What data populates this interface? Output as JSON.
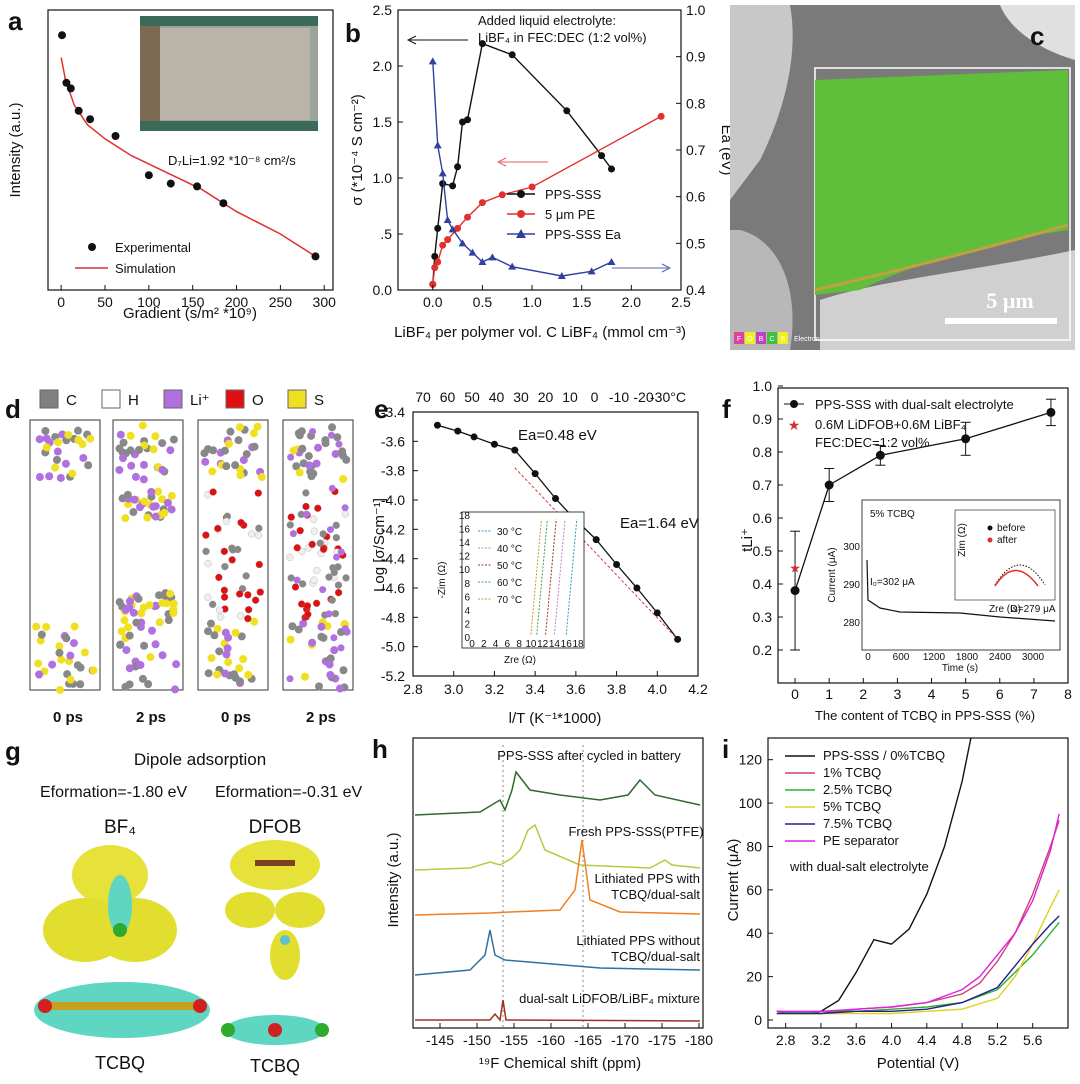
{
  "panels": {
    "a": {
      "letter": "a",
      "xlabel": "Gradient (s/m² *10⁹)",
      "ylabel": "Intensity (a.u.)",
      "diffusion": "D₇Li=1.92 *10⁻⁸ cm²/s",
      "legend": [
        "Experimental",
        "Simulation"
      ],
      "xticks": [
        "0",
        "50",
        "100",
        "150",
        "200",
        "250",
        "300"
      ]
    },
    "b": {
      "letter": "b",
      "xlabel": "LiBF₄ per polymer vol. C LiBF₄ (mmol cm⁻³)",
      "ylabel_left": "σ (*10⁻⁴ S cm⁻²)",
      "ylabel_right": "Ea (eV)",
      "note1": "Added liquid electrolyte:",
      "note2": "LiBF₄ in FEC:DEC (1:2 vol%)",
      "legend": [
        "PPS-SSS",
        "5 μm PE",
        "PPS-SSS Ea"
      ],
      "xticks": [
        "0.0",
        "0.5",
        "1.0",
        "1.5",
        "2.0",
        "2.5"
      ],
      "yticks_left": [
        "0.0",
        ".5",
        "1.0",
        "1.5",
        "2.0",
        "2.5"
      ],
      "yticks_right": [
        "0.4",
        "0.5",
        "0.6",
        "0.7",
        "0.8",
        "0.9",
        "1.0"
      ]
    },
    "c": {
      "letter": "c",
      "scalebar": "5 μm",
      "edx_labels": [
        "F",
        "O",
        "B",
        "C",
        "S"
      ],
      "edx_caption": "Electron"
    },
    "d": {
      "letter": "d",
      "legend": [
        "C",
        "H",
        "Li⁺",
        "O",
        "S"
      ],
      "legend_colors": [
        "#808080",
        "#ffffff",
        "#b070e0",
        "#e01010",
        "#f0e020"
      ],
      "captions": [
        "0 ps",
        "2 ps",
        "0 ps",
        "2 ps"
      ]
    },
    "e": {
      "letter": "e",
      "xlabel": "l/T (K⁻¹*1000)",
      "ylabel": "Log [σ/Scm⁻¹]",
      "ea1": "Ea=0.48 eV",
      "ea2": "Ea=1.64 eV",
      "top_ticks": [
        "70",
        "60",
        "50",
        "40",
        "30",
        "20",
        "10",
        "0",
        "-10",
        "-20",
        "-30°C"
      ],
      "xticks": [
        "2.8",
        "3.0",
        "3.2",
        "3.4",
        "3.6",
        "3.8",
        "4.0",
        "4.2"
      ],
      "yticks": [
        "-3.4",
        "-3.6",
        "-3.8",
        "-4.0",
        "-4.2",
        "-4.4",
        "-4.6",
        "-4.8",
        "-5.0",
        "-5.2"
      ],
      "inset_legend": [
        "30 °C",
        "40 °C",
        "50 °C",
        "60 °C",
        "70 °C"
      ],
      "inset_xlabel": "Zre (Ω)",
      "inset_ylabel": "-Zim (Ω)",
      "inset_xticks": [
        "0",
        "2",
        "4",
        "6",
        "8",
        "10",
        "12",
        "14",
        "16",
        "18"
      ],
      "inset_yticks": [
        "0",
        "2",
        "4",
        "6",
        "8",
        "10",
        "12",
        "14",
        "16",
        "18"
      ]
    },
    "f": {
      "letter": "f",
      "xlabel": "The content of TCBQ in PPS-SSS (%)",
      "ylabel": "tLi⁺",
      "legend": [
        "PPS-SSS with dual-salt electrolyte",
        "0.6M LiDFOB+0.6M LiBF₄",
        "FEC:DEC=1:2 vol%"
      ],
      "xticks": [
        "0",
        "1",
        "2",
        "3",
        "4",
        "5",
        "6",
        "7",
        "8"
      ],
      "yticks": [
        "0.2",
        "0.3",
        "0.4",
        "0.5",
        "0.6",
        "0.7",
        "0.8",
        "0.9",
        "1.0"
      ],
      "inset_title": "5% TCBQ",
      "inset_i0": "I₀=302 μA",
      "inset_is": "Is=279 μA",
      "inset_xlabel": "Time (s)",
      "inset_ylabel": "Current (μA)",
      "inset_xticks": [
        "0",
        "600",
        "1200",
        "1800",
        "2400",
        "3000"
      ],
      "inset_yticks": [
        "280",
        "290",
        "300"
      ],
      "subinset_legend": [
        "before",
        "after"
      ],
      "subinset_xlabel": "Zre (Ω)",
      "subinset_ylabel": "Zim (Ω)"
    },
    "g": {
      "letter": "g",
      "title": "Dipole adsorption",
      "ef1": "Eformation=-1.80 eV",
      "ef2": "Eformation=-0.31 eV",
      "mol1": "BF₄",
      "mol2": "DFOB",
      "sub1": "TCBQ",
      "sub2": "TCBQ"
    },
    "h": {
      "letter": "h",
      "xlabel": "¹⁹F Chemical shift (ppm)",
      "ylabel": "Intensity (a.u.)",
      "labels": [
        "PPS-SSS after cycled in battery",
        "Fresh PPS-SSS(PTFE)",
        "Lithiated PPS with TCBQ/dual-salt",
        "Lithiated PPS without TCBQ/dual-salt",
        "dual-salt LiDFOB/LiBF₄ mixture"
      ],
      "xticks": [
        "-145",
        "-150",
        "-155",
        "-160",
        "-165",
        "-170",
        "-175",
        "-180"
      ]
    },
    "i": {
      "letter": "i",
      "xlabel": "Potential (V)",
      "ylabel": "Current (μA)",
      "note": "with dual-salt electrolyte",
      "legend": [
        "PPS-SSS / 0%TCBQ",
        "1% TCBQ",
        "2.5% TCBQ",
        "5% TCBQ",
        "7.5% TCBQ",
        "PE separator"
      ],
      "legend_colors": [
        "#111111",
        "#d04070",
        "#30b030",
        "#e0d020",
        "#202090",
        "#e020e0"
      ],
      "xticks": [
        "2.8",
        "3.2",
        "3.6",
        "4.0",
        "4.4",
        "4.8",
        "5.2",
        "5.6"
      ],
      "yticks": [
        "0",
        "20",
        "40",
        "60",
        "80",
        "100",
        "120"
      ]
    }
  },
  "chart_data": [
    {
      "type": "scatter",
      "panel": "a",
      "xlabel": "Gradient (s/m² *10⁹)",
      "ylabel": "Intensity (a.u.)",
      "xlim": [
        -15,
        310
      ],
      "series": [
        {
          "name": "Experimental",
          "x": [
            1,
            6,
            11,
            20,
            33,
            62,
            100,
            125,
            155,
            185,
            290
          ],
          "y": [
            0.91,
            0.74,
            0.72,
            0.64,
            0.61,
            0.55,
            0.41,
            0.38,
            0.37,
            0.31,
            0.12
          ]
        },
        {
          "name": "Simulation",
          "x": [
            0,
            5,
            15,
            30,
            50,
            80,
            120,
            160,
            200,
            250,
            290
          ],
          "y": [
            0.83,
            0.75,
            0.66,
            0.59,
            0.54,
            0.48,
            0.42,
            0.36,
            0.28,
            0.2,
            0.12
          ]
        }
      ]
    },
    {
      "type": "line",
      "panel": "b",
      "xlim": [
        -0.35,
        2.5
      ],
      "ylim": [
        0,
        2.5
      ],
      "y2lim": [
        0.4,
        1.0
      ],
      "series": [
        {
          "name": "PPS-SSS",
          "x": [
            0,
            0.02,
            0.05,
            0.1,
            0.2,
            0.25,
            0.3,
            0.35,
            0.5,
            0.8,
            1.35,
            1.7,
            1.8
          ],
          "y": [
            0.05,
            0.3,
            0.55,
            0.95,
            0.93,
            1.1,
            1.5,
            1.52,
            2.2,
            2.1,
            1.6,
            1.2,
            1.08
          ]
        },
        {
          "name": "5 μm PE",
          "x": [
            0,
            0.02,
            0.05,
            0.1,
            0.15,
            0.25,
            0.35,
            0.5,
            0.7,
            1.0,
            2.3
          ],
          "y": [
            0.05,
            0.2,
            0.25,
            0.4,
            0.45,
            0.55,
            0.65,
            0.78,
            0.85,
            0.92,
            1.55
          ]
        },
        {
          "name": "PPS-SSS Ea",
          "axis": "right",
          "x": [
            0,
            0.05,
            0.1,
            0.15,
            0.2,
            0.3,
            0.4,
            0.5,
            0.6,
            0.8,
            1.3,
            1.6,
            1.8
          ],
          "y": [
            0.89,
            0.71,
            0.65,
            0.55,
            0.53,
            0.5,
            0.48,
            0.46,
            0.47,
            0.45,
            0.43,
            0.44,
            0.46
          ]
        }
      ]
    },
    {
      "type": "line",
      "panel": "e",
      "xlim": [
        2.8,
        4.2
      ],
      "ylim": [
        -5.2,
        -3.4
      ],
      "series": [
        {
          "name": "log conductivity",
          "x": [
            2.92,
            3.02,
            3.1,
            3.2,
            3.3,
            3.4,
            3.5,
            3.58,
            3.7,
            3.8,
            3.9,
            4.0,
            4.1
          ],
          "y": [
            -3.49,
            -3.53,
            -3.57,
            -3.62,
            -3.66,
            -3.82,
            -3.99,
            -4.11,
            -4.27,
            -4.44,
            -4.6,
            -4.77,
            -4.95
          ]
        }
      ]
    },
    {
      "type": "scatter",
      "panel": "f",
      "xlim": [
        -0.5,
        8
      ],
      "ylim": [
        0.2,
        1.0
      ],
      "series": [
        {
          "name": "PPS-SSS with dual-salt electrolyte",
          "x": [
            0,
            1,
            2.5,
            5,
            7.5
          ],
          "y": [
            0.38,
            0.7,
            0.79,
            0.84,
            0.92
          ],
          "err": [
            0.18,
            0.05,
            0.03,
            0.05,
            0.04
          ]
        },
        {
          "name": "0.6M LiDFOB+0.6M LiBF₄",
          "x": [
            0
          ],
          "y": [
            0.45
          ]
        }
      ]
    },
    {
      "type": "line",
      "panel": "i",
      "xlim": [
        2.6,
        6.0
      ],
      "ylim": [
        0,
        130
      ],
      "series": [
        {
          "name": "PPS-SSS / 0%TCBQ",
          "x": [
            2.7,
            3.0,
            3.2,
            3.4,
            3.6,
            3.8,
            4.0,
            4.2,
            4.4,
            4.6,
            4.8,
            4.9
          ],
          "y": [
            4,
            3,
            4,
            9,
            22,
            37,
            35,
            42,
            58,
            80,
            110,
            130
          ]
        },
        {
          "name": "1% TCBQ",
          "x": [
            2.7,
            3.2,
            3.6,
            4.0,
            4.4,
            4.8,
            5.0,
            5.2,
            5.4,
            5.6,
            5.8,
            5.9
          ],
          "y": [
            4,
            3,
            5,
            6,
            8,
            12,
            17,
            27,
            40,
            58,
            80,
            92
          ]
        },
        {
          "name": "2.5% TCBQ",
          "x": [
            2.7,
            3.2,
            3.6,
            4.0,
            4.4,
            4.8,
            5.2,
            5.4,
            5.6,
            5.8,
            5.9
          ],
          "y": [
            3,
            4,
            4,
            5,
            6,
            8,
            14,
            22,
            30,
            40,
            45
          ]
        },
        {
          "name": "5% TCBQ",
          "x": [
            2.7,
            3.2,
            3.6,
            4.0,
            4.4,
            4.8,
            5.2,
            5.4,
            5.6,
            5.8,
            5.9
          ],
          "y": [
            3,
            3,
            3,
            3,
            4,
            5,
            10,
            20,
            35,
            52,
            60
          ]
        },
        {
          "name": "7.5% TCBQ",
          "x": [
            2.7,
            3.2,
            3.6,
            4.0,
            4.4,
            4.8,
            5.2,
            5.4,
            5.6,
            5.8,
            5.9
          ],
          "y": [
            3,
            3,
            4,
            4,
            5,
            8,
            15,
            25,
            35,
            44,
            48
          ]
        },
        {
          "name": "PE separator",
          "x": [
            2.7,
            3.2,
            3.6,
            4.0,
            4.4,
            4.8,
            5.0,
            5.2,
            5.4,
            5.6,
            5.8,
            5.9
          ],
          "y": [
            4,
            4,
            5,
            6,
            8,
            14,
            20,
            30,
            40,
            55,
            78,
            95
          ]
        }
      ]
    }
  ]
}
